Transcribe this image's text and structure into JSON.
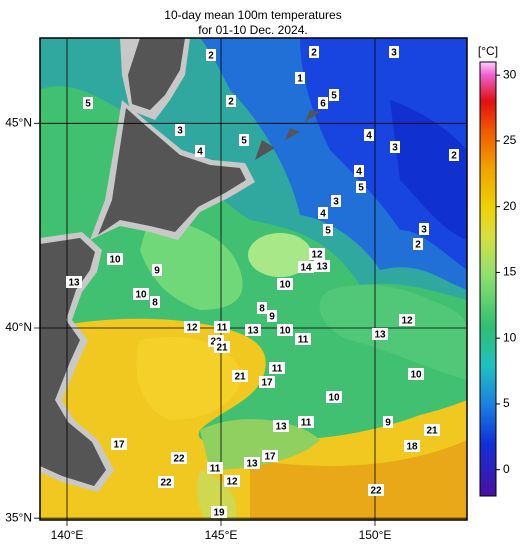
{
  "header": {
    "title": "10-day mean 100m temperatures",
    "subtitle": "for 01-10 Dec. 2024."
  },
  "map": {
    "lon_ticks": [
      {
        "value": 140,
        "label": "140°E"
      },
      {
        "value": 145,
        "label": "145°E"
      },
      {
        "value": 150,
        "label": "150°E"
      }
    ],
    "lat_ticks": [
      {
        "value": 45,
        "label": "45°N"
      },
      {
        "value": 40,
        "label": "40°N"
      },
      {
        "value": 35,
        "label": "35°N"
      }
    ],
    "contour_labels": [
      2,
      3,
      2,
      1,
      5,
      2,
      6,
      5,
      3,
      4,
      5,
      4,
      3,
      2,
      4,
      5,
      3,
      4,
      5,
      3,
      2,
      12,
      14,
      13,
      10,
      9,
      13,
      10,
      10,
      8,
      8,
      9,
      12,
      12,
      11,
      13,
      10,
      13,
      11,
      22,
      21,
      21,
      11,
      17,
      10,
      10,
      13,
      11,
      9,
      21,
      18,
      17,
      17,
      22,
      13,
      11,
      22,
      12,
      22,
      19
    ]
  },
  "colorbar": {
    "unit": "[°C]",
    "range": [
      -2,
      31
    ],
    "ticks": [
      0,
      5,
      10,
      15,
      20,
      25,
      30
    ]
  }
}
